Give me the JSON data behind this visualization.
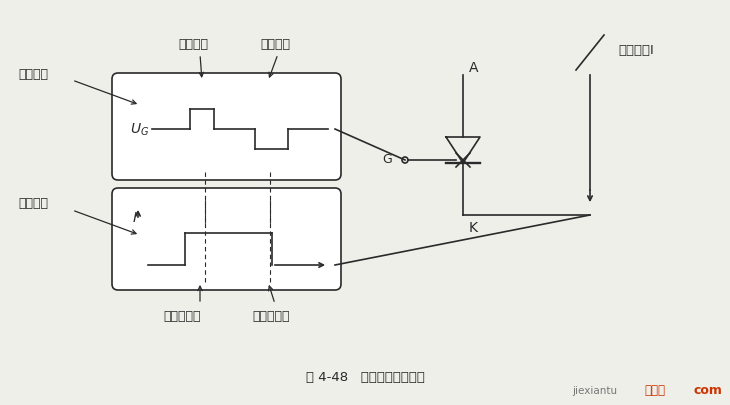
{
  "bg_color": "#efefea",
  "line_color": "#2a2a2a",
  "title": "图 4-48   可关断晶闸管原理",
  "label_control_voltage": "控制电压",
  "label_conduction_current": "导通电流",
  "label_turn_on_pulse": "导通脉冲",
  "label_turn_off_pulse": "关断脉冲",
  "label_thyristor_on": "晶闸管导通",
  "label_thyristor_off": "晶闸管关断",
  "label_A": "A",
  "label_G": "G",
  "label_K": "K",
  "label_conduction_I": "导通电流I",
  "watermark_site": "jiexiantu",
  "watermark_cn": "接线图",
  "watermark_com": "com"
}
